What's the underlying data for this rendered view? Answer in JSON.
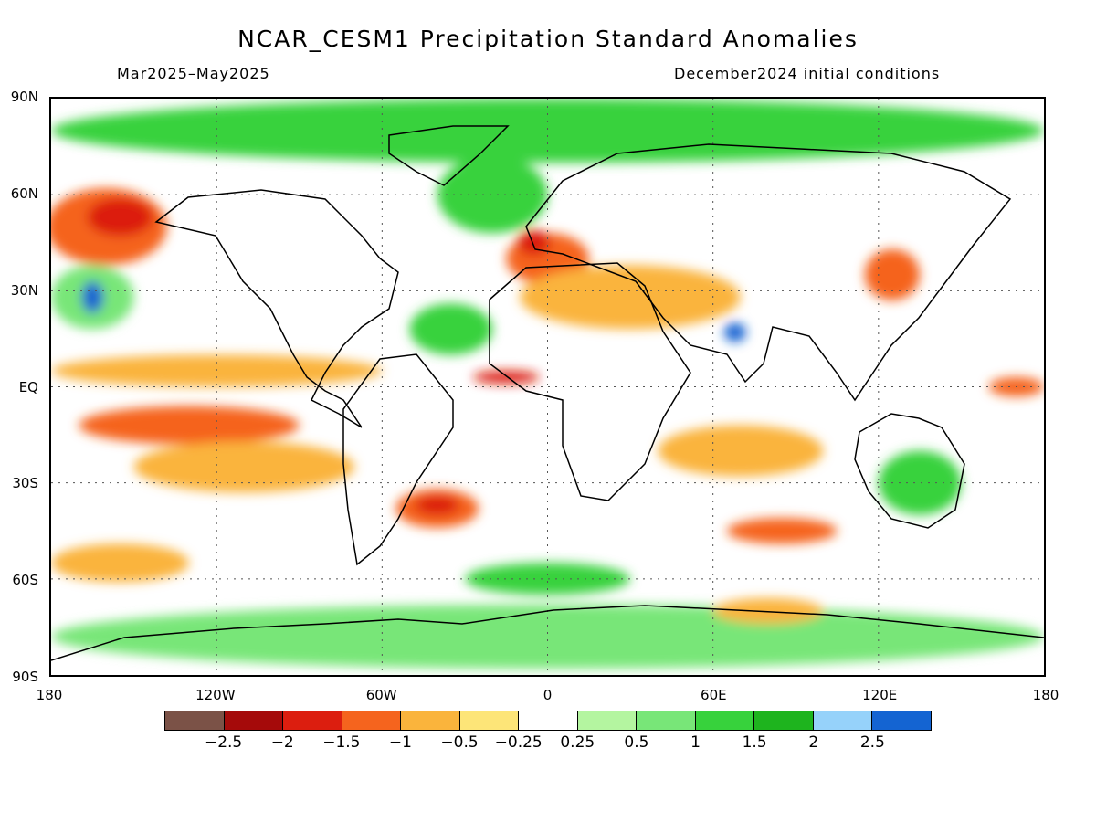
{
  "title": "NCAR_CESM1 Precipitation Standard Anomalies",
  "period": "Mar2025–May2025",
  "init": "December2024 initial conditions",
  "lat_labels": [
    "90N",
    "60N",
    "30N",
    "EQ",
    "30S",
    "60S",
    "90S"
  ],
  "lon_labels": [
    "180",
    "120W",
    "60W",
    "0",
    "60E",
    "120E",
    "180"
  ],
  "colorbar": {
    "colors": [
      "#7b5247",
      "#a50a0a",
      "#dc1e0f",
      "#f5641e",
      "#fab43c",
      "#fde578",
      "#ffffff",
      "#b4f5a0",
      "#78e678",
      "#37d23c",
      "#1eb41e",
      "#96d2fa",
      "#1464d2"
    ],
    "labels": [
      "−2.5",
      "−2",
      "−1.5",
      "−1",
      "−0.5",
      "−0.25",
      "0.25",
      "0.5",
      "1",
      "1.5",
      "2",
      "2.5"
    ]
  },
  "map": {
    "regions": [
      {
        "color": "#37d23c",
        "lat": 80,
        "lon": 0,
        "rx": 180,
        "ry": 10
      },
      {
        "color": "#78e678",
        "lat": -78,
        "lon": 0,
        "rx": 180,
        "ry": 10
      },
      {
        "color": "#f5641e",
        "lat": 50,
        "lon": -160,
        "rx": 22,
        "ry": 12
      },
      {
        "color": "#dc1e0f",
        "lat": 53,
        "lon": -155,
        "rx": 12,
        "ry": 6
      },
      {
        "color": "#78e678",
        "lat": 28,
        "lon": -165,
        "rx": 15,
        "ry": 10
      },
      {
        "color": "#1464d2",
        "lat": 28,
        "lon": -165,
        "rx": 4,
        "ry": 5
      },
      {
        "color": "#fab43c",
        "lat": 5,
        "lon": -120,
        "rx": 60,
        "ry": 5
      },
      {
        "color": "#f5641e",
        "lat": -12,
        "lon": -130,
        "rx": 40,
        "ry": 6
      },
      {
        "color": "#fab43c",
        "lat": -25,
        "lon": -110,
        "rx": 40,
        "ry": 8
      },
      {
        "color": "#f5641e",
        "lat": -38,
        "lon": -40,
        "rx": 15,
        "ry": 6
      },
      {
        "color": "#dc1e0f",
        "lat": -37,
        "lon": -40,
        "rx": 8,
        "ry": 3
      },
      {
        "color": "#f5641e",
        "lat": 40,
        "lon": 0,
        "rx": 15,
        "ry": 8
      },
      {
        "color": "#dc1e0f",
        "lat": 45,
        "lon": -5,
        "rx": 6,
        "ry": 4
      },
      {
        "color": "#fab43c",
        "lat": 28,
        "lon": 30,
        "rx": 40,
        "ry": 10
      },
      {
        "color": "#37d23c",
        "lat": 18,
        "lon": -35,
        "rx": 15,
        "ry": 8
      },
      {
        "color": "#dc1e0f",
        "lat": 3,
        "lon": -15,
        "rx": 12,
        "ry": 2
      },
      {
        "color": "#1464d2",
        "lat": 17,
        "lon": 68,
        "rx": 4,
        "ry": 3
      },
      {
        "color": "#37d23c",
        "lat": -30,
        "lon": 135,
        "rx": 15,
        "ry": 10
      },
      {
        "color": "#f5641e",
        "lat": -45,
        "lon": 85,
        "rx": 20,
        "ry": 4
      },
      {
        "color": "#fab43c",
        "lat": -20,
        "lon": 70,
        "rx": 30,
        "ry": 8
      },
      {
        "color": "#f5641e",
        "lat": 35,
        "lon": 125,
        "rx": 10,
        "ry": 8
      },
      {
        "color": "#fab43c",
        "lat": -70,
        "lon": 80,
        "rx": 20,
        "ry": 4
      },
      {
        "color": "#37d23c",
        "lat": 60,
        "lon": -20,
        "rx": 20,
        "ry": 12
      },
      {
        "color": "#f5641e",
        "lat": 0,
        "lon": 170,
        "rx": 10,
        "ry": 3
      },
      {
        "color": "#fab43c",
        "lat": -55,
        "lon": -155,
        "rx": 25,
        "ry": 6
      },
      {
        "color": "#37d23c",
        "lat": -60,
        "lon": 0,
        "rx": 30,
        "ry": 5
      }
    ]
  }
}
